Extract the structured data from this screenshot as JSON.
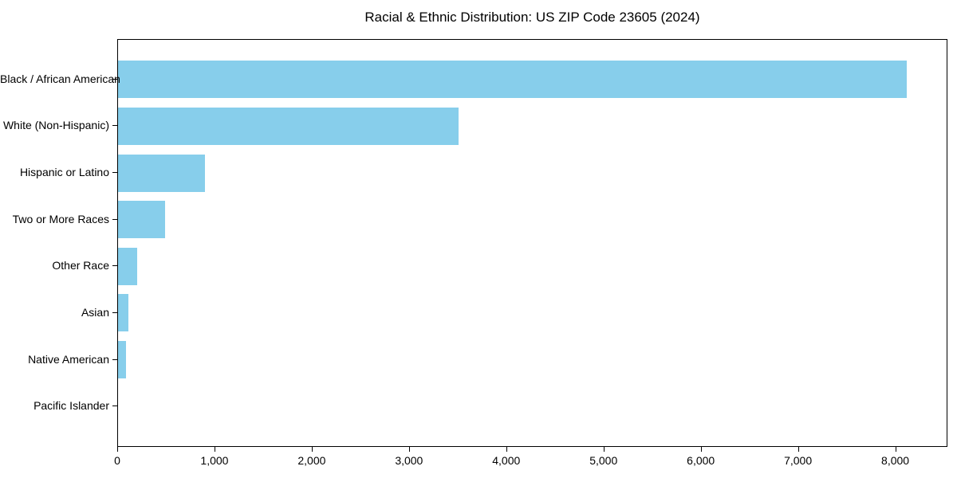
{
  "chart_data": {
    "type": "bar",
    "orientation": "horizontal",
    "title": "Racial & Ethnic Distribution: US ZIP Code 23605 (2024)",
    "categories": [
      "Black / African American",
      "White (Non-Hispanic)",
      "Hispanic or Latino",
      "Two or More Races",
      "Other Race",
      "Asian",
      "Native American",
      "Pacific Islander"
    ],
    "values": [
      8110,
      3500,
      890,
      485,
      200,
      105,
      80,
      0
    ],
    "xlabel": "",
    "ylabel": "",
    "xlim": [
      0,
      8520
    ],
    "x_ticks": [
      0,
      1000,
      2000,
      3000,
      4000,
      5000,
      6000,
      7000,
      8000
    ],
    "x_tick_labels": [
      "0",
      "1,000",
      "2,000",
      "3,000",
      "4,000",
      "5,000",
      "6,000",
      "7,000",
      "8,000"
    ],
    "grid": false,
    "legend": "none",
    "bar_color": "#87CEEB",
    "background_color": "#ffffff",
    "spine_color": "#000000"
  }
}
